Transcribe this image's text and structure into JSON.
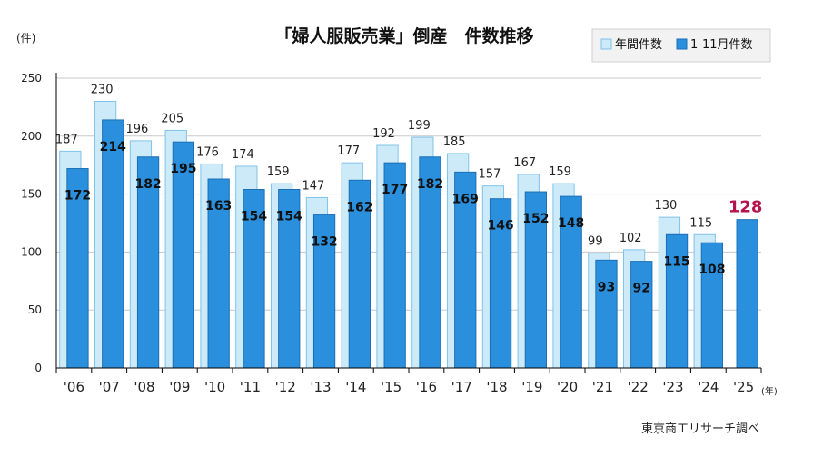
{
  "chart_data": {
    "type": "bar",
    "title": "「婦人服販売業」倒産　件数推移",
    "ylabel": "(件)",
    "xlabel_unit": "(年)",
    "source": "東京商工リサーチ調べ",
    "ylim": [
      0,
      250
    ],
    "yticks": [
      0,
      50,
      100,
      150,
      200,
      250
    ],
    "categories": [
      "'06",
      "'07",
      "'08",
      "'09",
      "'10",
      "'11",
      "'12",
      "'13",
      "'14",
      "'15",
      "'16",
      "'17",
      "'18",
      "'19",
      "'20",
      "'21",
      "'22",
      "'23",
      "'24",
      "'25"
    ],
    "series": [
      {
        "name": "年間件数",
        "color": "#cdeaf9",
        "edge": "#7fc3ea",
        "values": [
          187,
          230,
          196,
          205,
          176,
          174,
          159,
          147,
          177,
          192,
          199,
          185,
          157,
          167,
          159,
          99,
          102,
          130,
          115,
          null
        ]
      },
      {
        "name": "1-11月件数",
        "color": "#2a8fdd",
        "edge": "#1c6fb5",
        "values": [
          172,
          214,
          182,
          195,
          163,
          154,
          154,
          132,
          162,
          177,
          182,
          169,
          146,
          152,
          148,
          93,
          92,
          115,
          108,
          128
        ]
      }
    ],
    "highlight_color": "#b5134b"
  }
}
